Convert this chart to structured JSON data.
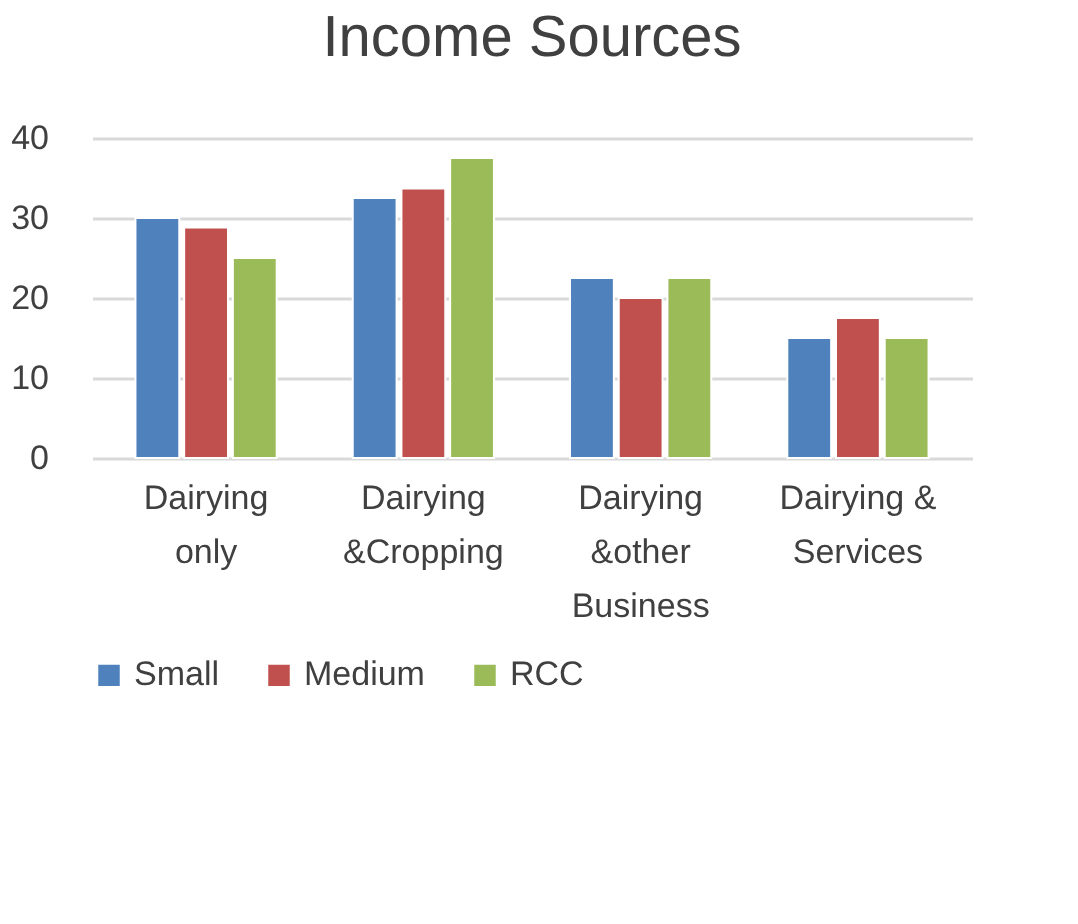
{
  "chart_data": {
    "type": "bar",
    "title": "Income Sources",
    "categories": [
      "Dairying\nonly",
      "Dairying\n&Cropping",
      "Dairying\n&other\nBusiness",
      "Dairying &\nServices"
    ],
    "series": [
      {
        "name": "Small",
        "color": "#4f81bd",
        "values": [
          30,
          32.5,
          22.5,
          15
        ]
      },
      {
        "name": "Medium",
        "color": "#c0504d",
        "values": [
          28.8,
          33.7,
          20,
          17.5
        ]
      },
      {
        "name": "RCC",
        "color": "#9bbb59",
        "values": [
          25,
          37.5,
          22.5,
          15
        ]
      }
    ],
    "ylim": [
      0,
      40
    ],
    "yticks": [
      0,
      10,
      20,
      30,
      40
    ],
    "grid": "y",
    "legend": "bottom"
  }
}
